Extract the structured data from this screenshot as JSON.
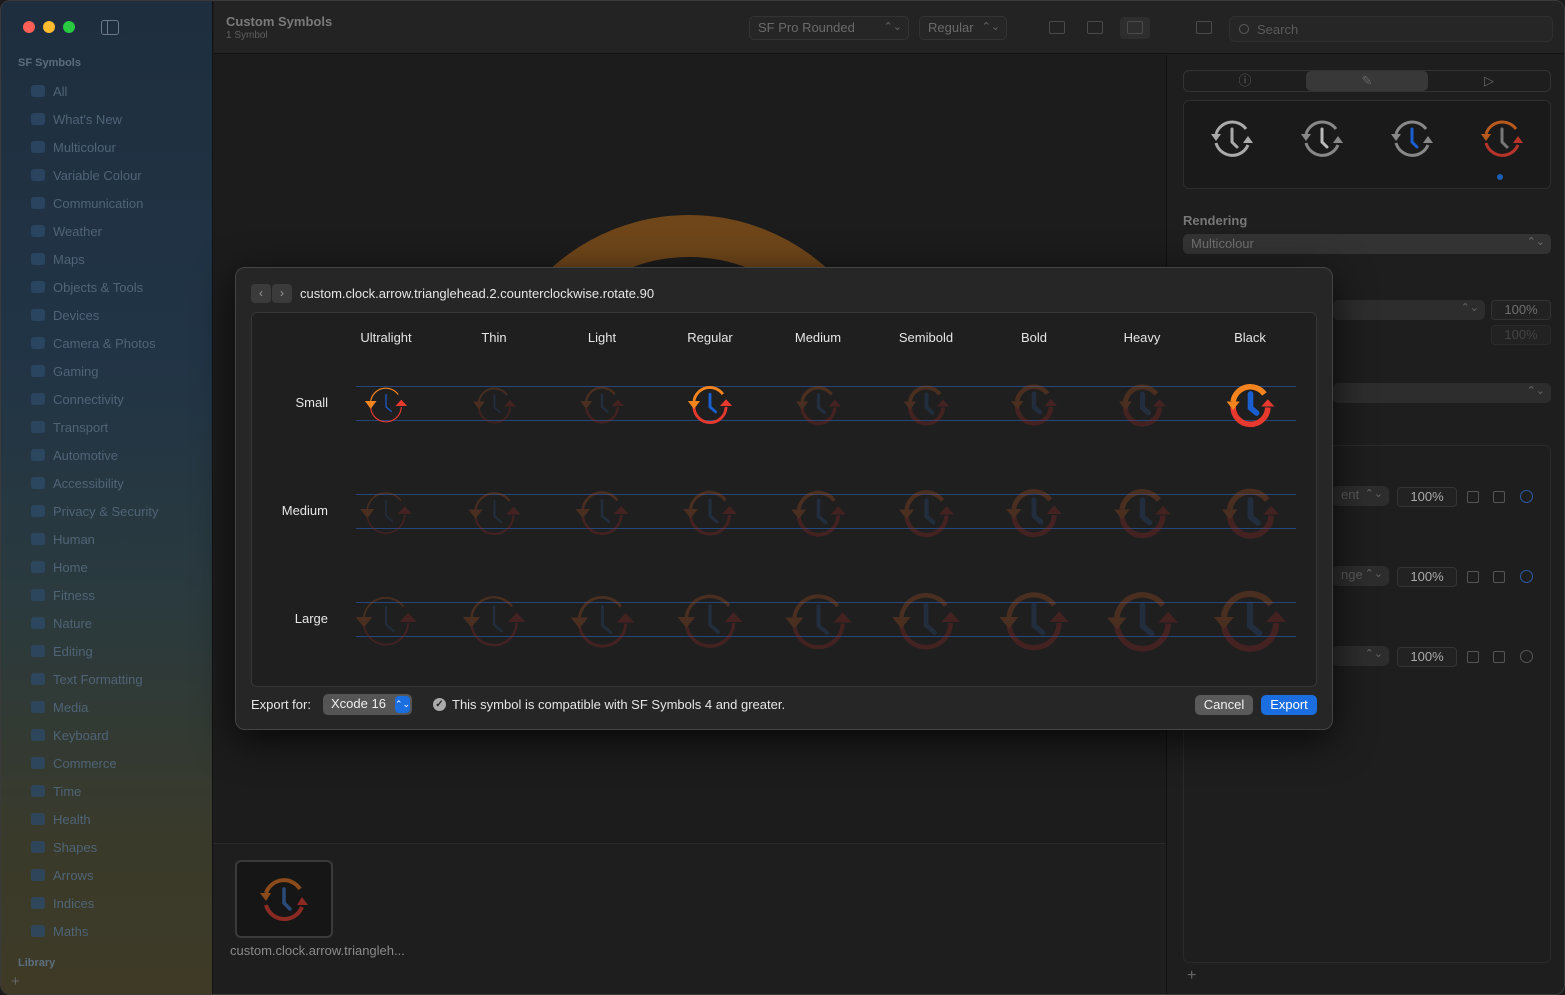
{
  "sidebar": {
    "section_title": "SF Symbols",
    "items": [
      {
        "label": "All"
      },
      {
        "label": "What's New"
      },
      {
        "label": "Multicolour"
      },
      {
        "label": "Variable Colour"
      },
      {
        "label": "Communication"
      },
      {
        "label": "Weather"
      },
      {
        "label": "Maps"
      },
      {
        "label": "Objects & Tools"
      },
      {
        "label": "Devices"
      },
      {
        "label": "Camera & Photos"
      },
      {
        "label": "Gaming"
      },
      {
        "label": "Connectivity"
      },
      {
        "label": "Transport"
      },
      {
        "label": "Automotive"
      },
      {
        "label": "Accessibility"
      },
      {
        "label": "Privacy & Security"
      },
      {
        "label": "Human"
      },
      {
        "label": "Home"
      },
      {
        "label": "Fitness"
      },
      {
        "label": "Nature"
      },
      {
        "label": "Editing"
      },
      {
        "label": "Text Formatting"
      },
      {
        "label": "Media"
      },
      {
        "label": "Keyboard"
      },
      {
        "label": "Commerce"
      },
      {
        "label": "Time"
      },
      {
        "label": "Health"
      },
      {
        "label": "Shapes"
      },
      {
        "label": "Arrows"
      },
      {
        "label": "Indices"
      },
      {
        "label": "Maths"
      }
    ],
    "library_title": "Library",
    "add_glyph": "+"
  },
  "toolbar": {
    "title": "Custom Symbols",
    "subtitle": "1 Symbol",
    "font_select": "SF Pro Rounded",
    "weight_select": "Regular",
    "search_placeholder": "Search",
    "select_arrows": "⌃⌄"
  },
  "thumbnail": {
    "label": "custom.clock.arrow.triangleh..."
  },
  "inspector": {
    "tabs": [
      "ⓘ",
      "✎",
      "▷"
    ],
    "rendering_label": "Rendering",
    "rendering_value": "Multicolour",
    "opacity_1": "100%",
    "opacity_2": "100%",
    "layer_rows": [
      {
        "select": "ent",
        "pct": "100%"
      },
      {
        "select": "nge",
        "pct": "100%"
      },
      {
        "select": "",
        "pct": "100%"
      }
    ],
    "add_glyph": "+"
  },
  "modal": {
    "title": "custom.clock.arrow.trianglehead.2.counterclockwise.rotate.90",
    "nav_prev": "‹",
    "nav_next": "›",
    "weights": [
      "Ultralight",
      "Thin",
      "Light",
      "Regular",
      "Medium",
      "Semibold",
      "Bold",
      "Heavy",
      "Black"
    ],
    "scales": [
      "Small",
      "Medium",
      "Large"
    ],
    "highlighted_cells": [
      "Small/Ultralight",
      "Small/Regular",
      "Small/Black"
    ],
    "export_for_label": "Export for:",
    "export_for_value": "Xcode 16",
    "compat_text": "This symbol is compatible with SF Symbols 4 and greater.",
    "check_glyph": "✓",
    "cancel_label": "Cancel",
    "export_label": "Export"
  },
  "colors": {
    "orange": "#f5841f",
    "red": "#e8392f",
    "blue": "#1a5fd0",
    "accent": "#1a6ee0"
  }
}
